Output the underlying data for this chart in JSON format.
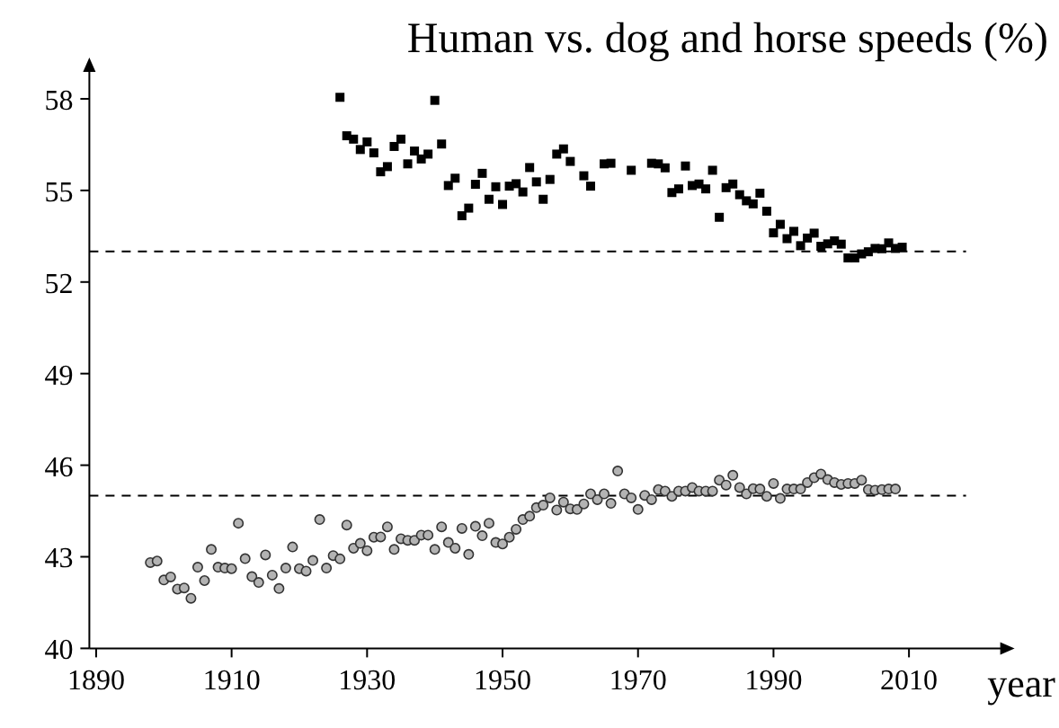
{
  "chart_data": {
    "type": "scatter",
    "title": "Human vs. dog and horse speeds (%)",
    "xlabel": "year",
    "xlim": [
      1889,
      2024
    ],
    "xticks": [
      1890,
      1910,
      1930,
      1950,
      1970,
      1990,
      2010
    ],
    "ylim": [
      40,
      59
    ],
    "yticks": [
      40,
      43,
      46,
      49,
      52,
      55,
      58
    ],
    "grid": false,
    "ref_lines": [
      {
        "axis": "y",
        "value": 53,
        "line_style": "dashed",
        "color": "#000000"
      },
      {
        "axis": "y",
        "value": 45,
        "line_style": "dashed",
        "color": "#000000"
      }
    ],
    "series": [
      {
        "color": "#000000",
        "marker": "square",
        "x": [
          1926,
          1927,
          1928,
          1929,
          1930,
          1931,
          1932,
          1933,
          1934,
          1935,
          1936,
          1937,
          1938,
          1939,
          1940,
          1941,
          1942,
          1943,
          1944,
          1945,
          1946,
          1947,
          1948,
          1949,
          1950,
          1951,
          1952,
          1953,
          1954,
          1955,
          1956,
          1957,
          1958,
          1959,
          1960,
          1962,
          1963,
          1965,
          1966,
          1969,
          1972,
          1973,
          1974,
          1975,
          1976,
          1977,
          1978,
          1979,
          1980,
          1981,
          1982,
          1983,
          1984,
          1985,
          1986,
          1987,
          1988,
          1989,
          1990,
          1991,
          1992,
          1993,
          1994,
          1995,
          1996,
          1997,
          1998,
          1999,
          2000,
          2001,
          2002,
          2003,
          2004,
          2005,
          2006,
          2007,
          2008,
          2009
        ],
        "values": [
          58.05,
          56.79,
          56.68,
          56.34,
          56.59,
          56.23,
          55.61,
          55.78,
          56.44,
          56.68,
          55.87,
          56.29,
          56.03,
          56.19,
          57.95,
          56.52,
          55.16,
          55.4,
          54.17,
          54.42,
          55.2,
          55.56,
          54.71,
          55.12,
          54.54,
          55.14,
          55.22,
          54.95,
          55.75,
          55.28,
          54.71,
          55.36,
          56.19,
          56.36,
          55.95,
          55.48,
          55.14,
          55.87,
          55.89,
          55.66,
          55.89,
          55.87,
          55.74,
          54.93,
          55.05,
          55.8,
          55.16,
          55.21,
          55.05,
          55.66,
          54.12,
          55.09,
          55.21,
          54.86,
          54.66,
          54.56,
          54.91,
          54.32,
          53.61,
          53.89,
          53.42,
          53.66,
          53.19,
          53.44,
          53.6,
          53.17,
          53.25,
          53.35,
          53.24,
          52.79,
          52.79,
          52.92,
          52.99,
          53.1,
          53.09,
          53.28,
          53.1,
          53.14
        ]
      },
      {
        "color": "#b3b3b3",
        "marker": "circle",
        "x": [
          1898,
          1899,
          1900,
          1901,
          1902,
          1903,
          1904,
          1905,
          1906,
          1907,
          1908,
          1909,
          1910,
          1911,
          1912,
          1913,
          1914,
          1915,
          1916,
          1917,
          1918,
          1919,
          1920,
          1921,
          1922,
          1923,
          1924,
          1925,
          1926,
          1927,
          1928,
          1929,
          1930,
          1931,
          1932,
          1933,
          1934,
          1935,
          1936,
          1937,
          1938,
          1939,
          1940,
          1941,
          1942,
          1943,
          1944,
          1945,
          1946,
          1947,
          1948,
          1949,
          1950,
          1951,
          1952,
          1953,
          1954,
          1955,
          1956,
          1957,
          1958,
          1959,
          1960,
          1961,
          1962,
          1963,
          1964,
          1965,
          1966,
          1967,
          1968,
          1969,
          1970,
          1971,
          1972,
          1973,
          1974,
          1975,
          1976,
          1977,
          1978,
          1979,
          1980,
          1981,
          1982,
          1983,
          1984,
          1985,
          1986,
          1987,
          1988,
          1989,
          1990,
          1991,
          1992,
          1993,
          1994,
          1995,
          1996,
          1997,
          1998,
          1999,
          2000,
          2001,
          2002,
          2003,
          2004,
          2005,
          2006,
          2007,
          2008
        ],
        "values": [
          42.81,
          42.86,
          42.24,
          42.34,
          41.94,
          41.98,
          41.64,
          42.66,
          42.22,
          43.24,
          42.66,
          42.63,
          42.61,
          44.1,
          42.94,
          42.35,
          42.16,
          43.06,
          42.4,
          41.96,
          42.63,
          43.32,
          42.61,
          42.53,
          42.88,
          44.22,
          42.63,
          43.04,
          42.93,
          44.04,
          43.28,
          43.44,
          43.2,
          43.64,
          43.65,
          43.98,
          43.24,
          43.59,
          43.54,
          43.54,
          43.71,
          43.71,
          43.24,
          43.98,
          43.47,
          43.28,
          43.93,
          43.08,
          44.0,
          43.69,
          44.1,
          43.47,
          43.42,
          43.64,
          43.9,
          44.22,
          44.33,
          44.61,
          44.69,
          44.93,
          44.53,
          44.79,
          44.57,
          44.55,
          44.73,
          45.06,
          44.87,
          45.06,
          44.75,
          45.81,
          45.06,
          44.93,
          44.55,
          45.01,
          44.87,
          45.2,
          45.15,
          44.98,
          45.15,
          45.15,
          45.27,
          45.15,
          45.15,
          45.15,
          45.51,
          45.35,
          45.67,
          45.27,
          45.06,
          45.23,
          45.22,
          44.98,
          45.4,
          44.91,
          45.22,
          45.22,
          45.22,
          45.43,
          45.59,
          45.71,
          45.53,
          45.43,
          45.37,
          45.4,
          45.4,
          45.51,
          45.2,
          45.18,
          45.2,
          45.22,
          45.22
        ]
      }
    ]
  }
}
